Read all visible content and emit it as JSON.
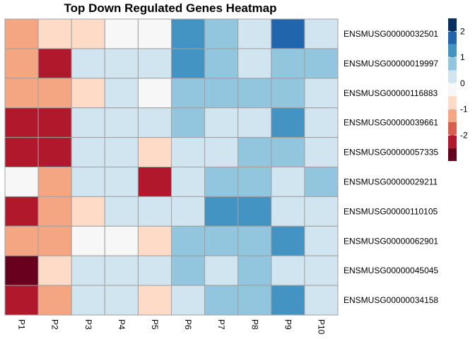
{
  "chart_data": {
    "type": "heatmap",
    "title": "Top Down Regulated Genes Heatmap",
    "columns": [
      "P1",
      "P2",
      "P3",
      "P4",
      "P5",
      "P6",
      "P7",
      "P8",
      "P9",
      "P10"
    ],
    "rows": [
      "ENSMUSG00000032501",
      "ENSMUSG00000019997",
      "ENSMUSG00000116883",
      "ENSMUSG00000039661",
      "ENSMUSG00000057335",
      "ENSMUSG00000029211",
      "ENSMUSG00000110105",
      "ENSMUSG00000062901",
      "ENSMUSG00000045045",
      "ENSMUSG00000034158"
    ],
    "values": [
      [
        -1.5,
        -0.75,
        -0.75,
        -0.25,
        -0.25,
        1.25,
        0.75,
        0.25,
        1.75,
        0.0
      ],
      [
        -1.5,
        -2.25,
        0.0,
        0.0,
        0.0,
        1.25,
        0.75,
        0.0,
        0.75,
        0.75
      ],
      [
        -1.5,
        -1.5,
        -0.75,
        0.25,
        -0.25,
        0.75,
        0.75,
        0.75,
        0.75,
        0.25
      ],
      [
        -2.25,
        -2.25,
        0.0,
        0.0,
        0.0,
        0.75,
        0.25,
        0.25,
        1.25,
        0.25
      ],
      [
        -2.25,
        -2.25,
        0.25,
        0.25,
        -0.75,
        0.25,
        0.25,
        0.75,
        0.75,
        0.25
      ],
      [
        -0.25,
        -1.5,
        0.0,
        0.25,
        -2.25,
        0.25,
        0.75,
        0.75,
        0.25,
        0.75
      ],
      [
        -2.25,
        -1.5,
        -0.75,
        0.0,
        0.0,
        0.25,
        1.25,
        1.25,
        0.0,
        0.25
      ],
      [
        -1.5,
        -1.5,
        -0.25,
        -0.25,
        -0.75,
        0.75,
        0.75,
        0.75,
        1.25,
        0.0
      ],
      [
        -2.75,
        -0.75,
        0.0,
        0.0,
        0.0,
        0.75,
        0.25,
        0.75,
        0.25,
        0.25
      ],
      [
        -2.25,
        -1.5,
        0.0,
        0.0,
        -0.75,
        0.25,
        0.75,
        0.75,
        1.25,
        0.25
      ]
    ],
    "color_breaks": [
      -3,
      -2.5,
      -2,
      -1.5,
      -1,
      -0.5,
      0,
      0.5,
      1,
      1.5,
      2,
      2.5
    ],
    "colors": [
      "#67001f",
      "#b2182b",
      "#d6604d",
      "#f4a582",
      "#fddbc7",
      "#f7f7f7",
      "#d1e5f0",
      "#92c5de",
      "#4393c3",
      "#2166ac",
      "#053061"
    ],
    "legend_ticks": [
      2,
      1,
      0,
      -1,
      -2
    ],
    "legend_range": [
      -3,
      2.5
    ],
    "cell_border_color": "#a0a0a0",
    "grid": false
  }
}
